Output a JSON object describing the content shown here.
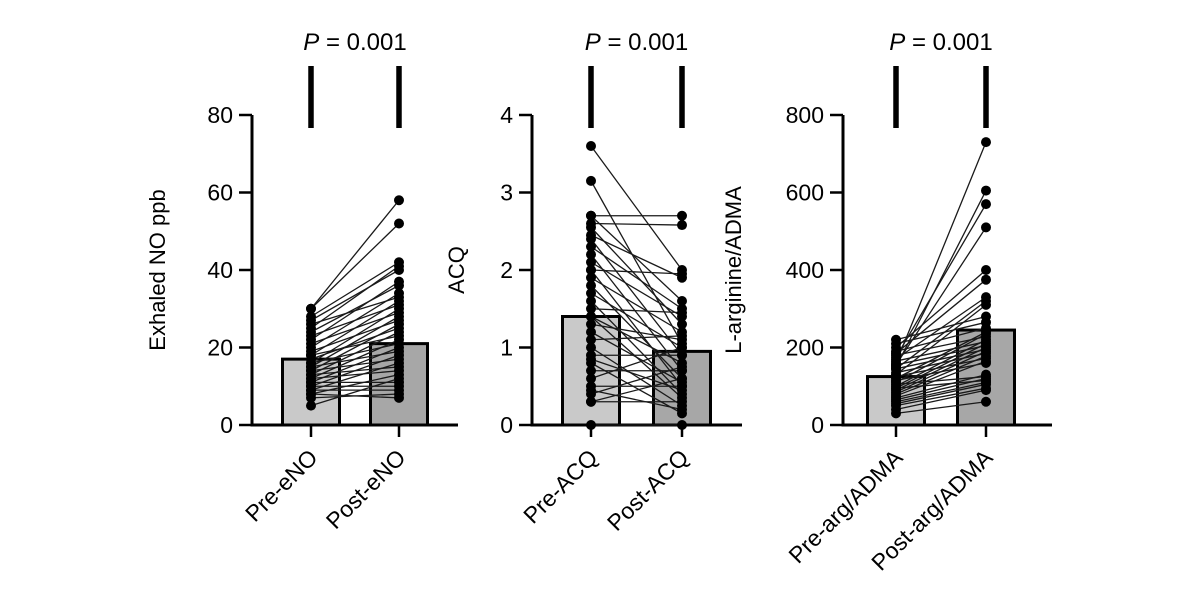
{
  "figure": {
    "background": "#ffffff",
    "axis_color": "#000000",
    "point_color": "#000000",
    "pair_line_color": "#1a1a1a",
    "bar_border_color": "#000000",
    "bar_fill_pre": "#c9c9c9",
    "bar_fill_post": "#a7a7a7",
    "sig_bar_color": "#000000"
  },
  "chart_data": [
    {
      "type": "scatter",
      "subtype": "paired-before-after-with-mean-bars",
      "p_label": "P = 0.001",
      "ylabel": "Exhaled NO ppb",
      "ylim": [
        0,
        80
      ],
      "yticks": [
        0,
        20,
        40,
        60,
        80
      ],
      "categories": [
        "Pre-eNO",
        "Post-eNO"
      ],
      "bar_means": [
        17,
        21
      ],
      "grid": false,
      "legend": "none",
      "pairs": [
        [
          30,
          58
        ],
        [
          30,
          52
        ],
        [
          28,
          42
        ],
        [
          25,
          41
        ],
        [
          27,
          40
        ],
        [
          22,
          37
        ],
        [
          24,
          36
        ],
        [
          20,
          34
        ],
        [
          26,
          33
        ],
        [
          18,
          32
        ],
        [
          23,
          31
        ],
        [
          16,
          30
        ],
        [
          21,
          29
        ],
        [
          15,
          28
        ],
        [
          19,
          27
        ],
        [
          14,
          26
        ],
        [
          17,
          25
        ],
        [
          13,
          24
        ],
        [
          18,
          23
        ],
        [
          12,
          22
        ],
        [
          16,
          21
        ],
        [
          11,
          20
        ],
        [
          15,
          19
        ],
        [
          10,
          18
        ],
        [
          14,
          17
        ],
        [
          9,
          16
        ],
        [
          13,
          15
        ],
        [
          12,
          14
        ],
        [
          8,
          13
        ],
        [
          5,
          12
        ],
        [
          11,
          11
        ],
        [
          10,
          10
        ],
        [
          9,
          9
        ],
        [
          7,
          8
        ],
        [
          8,
          7
        ]
      ]
    },
    {
      "type": "scatter",
      "subtype": "paired-before-after-with-mean-bars",
      "p_label": "P = 0.001",
      "ylabel": "ACQ",
      "ylim": [
        0,
        4
      ],
      "yticks": [
        0,
        1,
        2,
        3,
        4
      ],
      "categories": [
        "Pre-ACQ",
        "Post-ACQ"
      ],
      "bar_means": [
        1.4,
        0.95
      ],
      "grid": false,
      "legend": "none",
      "pairs": [
        [
          3.6,
          2.0
        ],
        [
          3.15,
          1.05
        ],
        [
          2.7,
          2.7
        ],
        [
          2.7,
          1.6
        ],
        [
          2.6,
          2.58
        ],
        [
          2.55,
          1.3
        ],
        [
          2.45,
          1.9
        ],
        [
          2.4,
          0.9
        ],
        [
          2.3,
          1.5
        ],
        [
          2.2,
          0.7
        ],
        [
          2.1,
          1.4
        ],
        [
          2.0,
          1.95
        ],
        [
          2.0,
          0.5
        ],
        [
          1.9,
          1.2
        ],
        [
          1.8,
          0.6
        ],
        [
          1.7,
          1.0
        ],
        [
          1.6,
          0.4
        ],
        [
          1.5,
          1.45
        ],
        [
          1.4,
          0.8
        ],
        [
          1.4,
          0.35
        ],
        [
          1.3,
          1.1
        ],
        [
          1.2,
          0.55
        ],
        [
          1.1,
          1.15
        ],
        [
          1.0,
          0.25
        ],
        [
          0.9,
          0.9
        ],
        [
          0.85,
          0.45
        ],
        [
          0.8,
          0.15
        ],
        [
          0.7,
          0.7
        ],
        [
          0.6,
          1.0
        ],
        [
          0.5,
          0.5
        ],
        [
          0.45,
          0.2
        ],
        [
          0.4,
          0.75
        ],
        [
          0.3,
          0.3
        ],
        [
          0.3,
          0.6
        ],
        [
          0.0,
          0.0
        ]
      ]
    },
    {
      "type": "scatter",
      "subtype": "paired-before-after-with-mean-bars",
      "p_label": "P = 0.001",
      "ylabel": "L-arginine/ADMA",
      "ylim": [
        0,
        800
      ],
      "yticks": [
        0,
        200,
        400,
        600,
        800
      ],
      "categories": [
        "Pre-arg/ADMA",
        "Post-arg/ADMA"
      ],
      "bar_means": [
        125,
        245
      ],
      "grid": false,
      "legend": "none",
      "pairs": [
        [
          160,
          730
        ],
        [
          150,
          605
        ],
        [
          175,
          570
        ],
        [
          155,
          510
        ],
        [
          200,
          400
        ],
        [
          185,
          375
        ],
        [
          170,
          330
        ],
        [
          145,
          320
        ],
        [
          130,
          310
        ],
        [
          220,
          280
        ],
        [
          210,
          265
        ],
        [
          190,
          250
        ],
        [
          120,
          240
        ],
        [
          110,
          235
        ],
        [
          180,
          228
        ],
        [
          100,
          220
        ],
        [
          165,
          215
        ],
        [
          95,
          210
        ],
        [
          155,
          205
        ],
        [
          90,
          200
        ],
        [
          145,
          195
        ],
        [
          85,
          190
        ],
        [
          135,
          185
        ],
        [
          80,
          178
        ],
        [
          125,
          172
        ],
        [
          75,
          165
        ],
        [
          115,
          160
        ],
        [
          70,
          130
        ],
        [
          105,
          125
        ],
        [
          65,
          120
        ],
        [
          95,
          115
        ],
        [
          60,
          110
        ],
        [
          55,
          105
        ],
        [
          50,
          95
        ],
        [
          40,
          90
        ],
        [
          30,
          60
        ]
      ]
    }
  ]
}
